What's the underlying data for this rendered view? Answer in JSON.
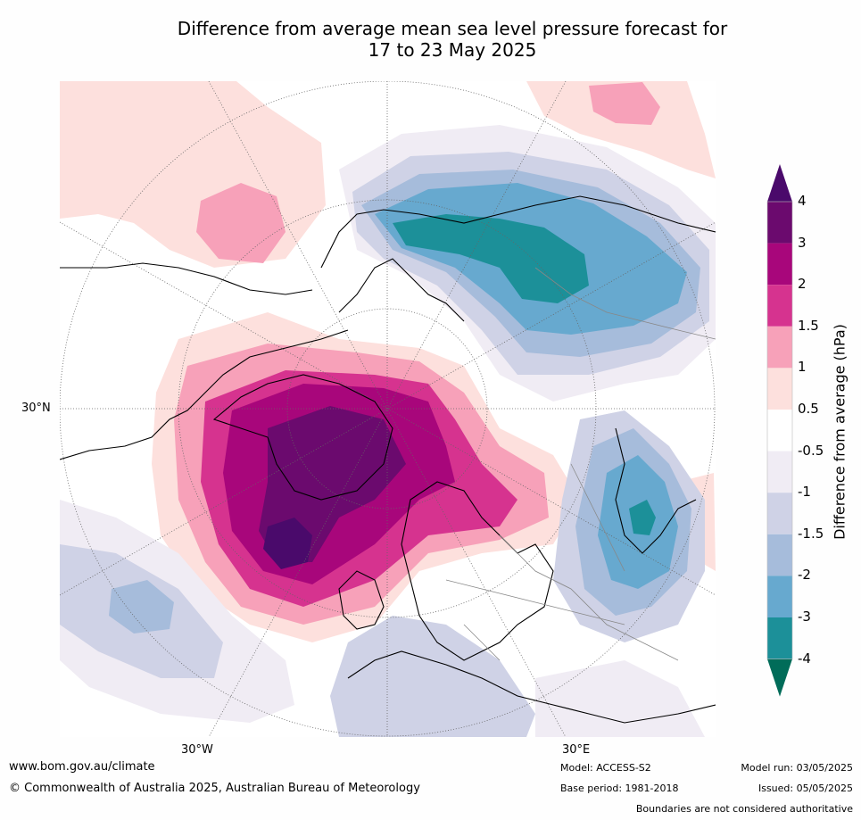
{
  "title_line1": "Difference from average mean sea level pressure forecast for",
  "title_line2": "17 to 23 May 2025",
  "map_labels": {
    "lat_label": "30°N",
    "lon_label_west": "30°W",
    "lon_label_east": "30°E"
  },
  "colorbar": {
    "title": "Difference from average (hPa)",
    "ticks": [
      "4",
      "3",
      "2",
      "1.5",
      "1",
      "0.5",
      "-0.5",
      "-1",
      "-1.5",
      "-2",
      "-3",
      "-4"
    ],
    "bands": [
      {
        "from": 3,
        "to": 4,
        "color": "#6b0a6e"
      },
      {
        "from": 2,
        "to": 3,
        "color": "#a8067b"
      },
      {
        "from": 1.5,
        "to": 2,
        "color": "#d6338f"
      },
      {
        "from": 1,
        "to": 1.5,
        "color": "#f7a1b9"
      },
      {
        "from": 0.5,
        "to": 1,
        "color": "#fde0dd"
      },
      {
        "from": -0.5,
        "to": 0.5,
        "color": "#ffffff"
      },
      {
        "from": -1,
        "to": -0.5,
        "color": "#f0ecf4"
      },
      {
        "from": -1.5,
        "to": -1,
        "color": "#cfd2e6"
      },
      {
        "from": -2,
        "to": -1.5,
        "color": "#a6bcdb"
      },
      {
        "from": -3,
        "to": -2,
        "color": "#67a9cf"
      },
      {
        "from": -4,
        "to": -3,
        "color": "#1c9099"
      }
    ],
    "overflow_color": "#4a0a6b",
    "underflow_color": "#016c59"
  },
  "footer": {
    "website": "www.bom.gov.au/climate",
    "copyright": "© Commonwealth of Australia 2025, Australian Bureau of Meteorology",
    "model": "Model: ACCESS-S2",
    "base_period": "Base period: 1981-2018",
    "model_run": "Model run: 03/05/2025",
    "issued": "Issued: 05/05/2025",
    "disclaimer": "Boundaries are not considered authoritative"
  }
}
